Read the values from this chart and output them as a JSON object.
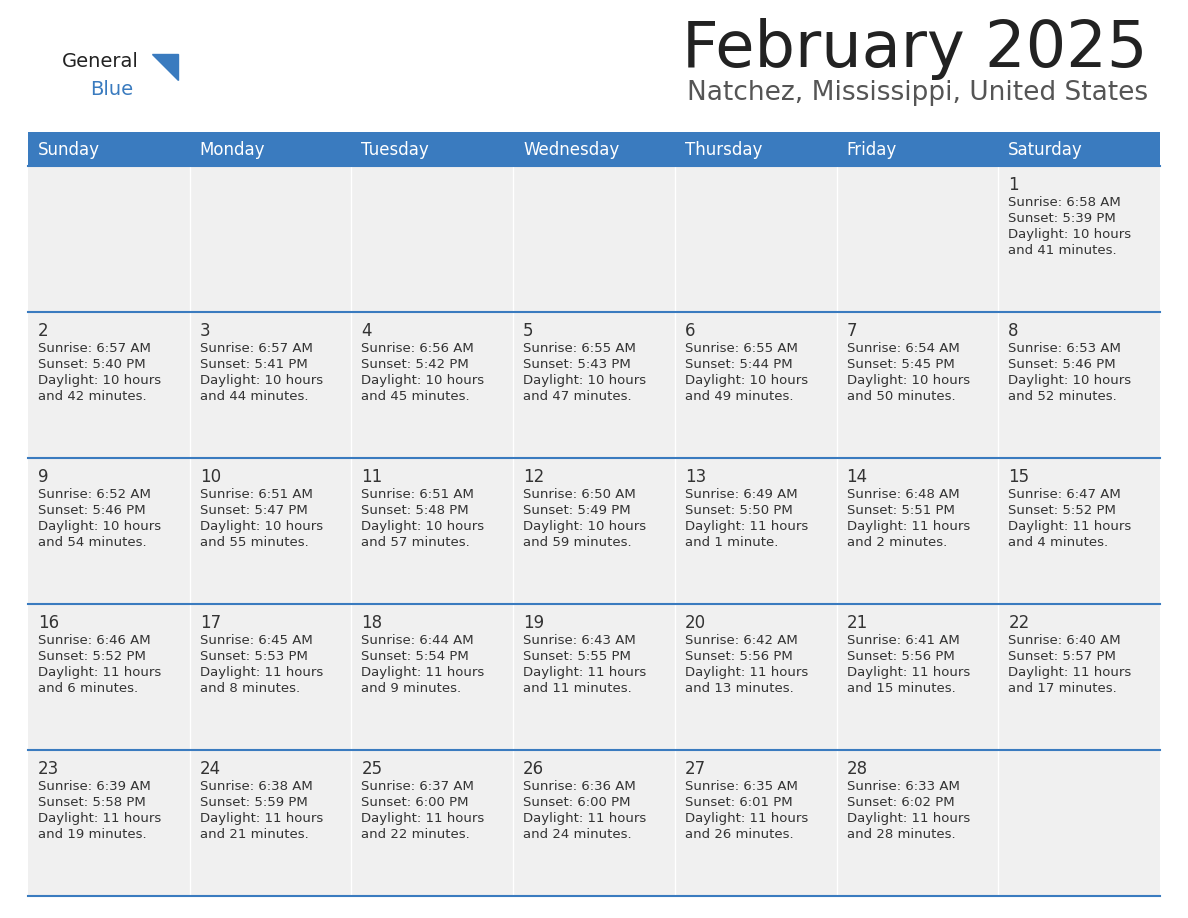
{
  "title": "February 2025",
  "subtitle": "Natchez, Mississippi, United States",
  "days_of_week": [
    "Sunday",
    "Monday",
    "Tuesday",
    "Wednesday",
    "Thursday",
    "Friday",
    "Saturday"
  ],
  "header_bg": "#3a7bbf",
  "header_text": "#ffffff",
  "cell_bg": "#f0f0f0",
  "border_color": "#3a7bbf",
  "text_color": "#333333",
  "title_color": "#222222",
  "subtitle_color": "#555555",
  "logo_black": "#222222",
  "logo_blue": "#3a7bbf",
  "calendar_data": [
    [
      null,
      null,
      null,
      null,
      null,
      null,
      {
        "day": "1",
        "sunrise": "6:58 AM",
        "sunset": "5:39 PM",
        "daylight": "10 hours",
        "daylight2": "and 41 minutes."
      }
    ],
    [
      {
        "day": "2",
        "sunrise": "6:57 AM",
        "sunset": "5:40 PM",
        "daylight": "10 hours",
        "daylight2": "and 42 minutes."
      },
      {
        "day": "3",
        "sunrise": "6:57 AM",
        "sunset": "5:41 PM",
        "daylight": "10 hours",
        "daylight2": "and 44 minutes."
      },
      {
        "day": "4",
        "sunrise": "6:56 AM",
        "sunset": "5:42 PM",
        "daylight": "10 hours",
        "daylight2": "and 45 minutes."
      },
      {
        "day": "5",
        "sunrise": "6:55 AM",
        "sunset": "5:43 PM",
        "daylight": "10 hours",
        "daylight2": "and 47 minutes."
      },
      {
        "day": "6",
        "sunrise": "6:55 AM",
        "sunset": "5:44 PM",
        "daylight": "10 hours",
        "daylight2": "and 49 minutes."
      },
      {
        "day": "7",
        "sunrise": "6:54 AM",
        "sunset": "5:45 PM",
        "daylight": "10 hours",
        "daylight2": "and 50 minutes."
      },
      {
        "day": "8",
        "sunrise": "6:53 AM",
        "sunset": "5:46 PM",
        "daylight": "10 hours",
        "daylight2": "and 52 minutes."
      }
    ],
    [
      {
        "day": "9",
        "sunrise": "6:52 AM",
        "sunset": "5:46 PM",
        "daylight": "10 hours",
        "daylight2": "and 54 minutes."
      },
      {
        "day": "10",
        "sunrise": "6:51 AM",
        "sunset": "5:47 PM",
        "daylight": "10 hours",
        "daylight2": "and 55 minutes."
      },
      {
        "day": "11",
        "sunrise": "6:51 AM",
        "sunset": "5:48 PM",
        "daylight": "10 hours",
        "daylight2": "and 57 minutes."
      },
      {
        "day": "12",
        "sunrise": "6:50 AM",
        "sunset": "5:49 PM",
        "daylight": "10 hours",
        "daylight2": "and 59 minutes."
      },
      {
        "day": "13",
        "sunrise": "6:49 AM",
        "sunset": "5:50 PM",
        "daylight": "11 hours",
        "daylight2": "and 1 minute."
      },
      {
        "day": "14",
        "sunrise": "6:48 AM",
        "sunset": "5:51 PM",
        "daylight": "11 hours",
        "daylight2": "and 2 minutes."
      },
      {
        "day": "15",
        "sunrise": "6:47 AM",
        "sunset": "5:52 PM",
        "daylight": "11 hours",
        "daylight2": "and 4 minutes."
      }
    ],
    [
      {
        "day": "16",
        "sunrise": "6:46 AM",
        "sunset": "5:52 PM",
        "daylight": "11 hours",
        "daylight2": "and 6 minutes."
      },
      {
        "day": "17",
        "sunrise": "6:45 AM",
        "sunset": "5:53 PM",
        "daylight": "11 hours",
        "daylight2": "and 8 minutes."
      },
      {
        "day": "18",
        "sunrise": "6:44 AM",
        "sunset": "5:54 PM",
        "daylight": "11 hours",
        "daylight2": "and 9 minutes."
      },
      {
        "day": "19",
        "sunrise": "6:43 AM",
        "sunset": "5:55 PM",
        "daylight": "11 hours",
        "daylight2": "and 11 minutes."
      },
      {
        "day": "20",
        "sunrise": "6:42 AM",
        "sunset": "5:56 PM",
        "daylight": "11 hours",
        "daylight2": "and 13 minutes."
      },
      {
        "day": "21",
        "sunrise": "6:41 AM",
        "sunset": "5:56 PM",
        "daylight": "11 hours",
        "daylight2": "and 15 minutes."
      },
      {
        "day": "22",
        "sunrise": "6:40 AM",
        "sunset": "5:57 PM",
        "daylight": "11 hours",
        "daylight2": "and 17 minutes."
      }
    ],
    [
      {
        "day": "23",
        "sunrise": "6:39 AM",
        "sunset": "5:58 PM",
        "daylight": "11 hours",
        "daylight2": "and 19 minutes."
      },
      {
        "day": "24",
        "sunrise": "6:38 AM",
        "sunset": "5:59 PM",
        "daylight": "11 hours",
        "daylight2": "and 21 minutes."
      },
      {
        "day": "25",
        "sunrise": "6:37 AM",
        "sunset": "6:00 PM",
        "daylight": "11 hours",
        "daylight2": "and 22 minutes."
      },
      {
        "day": "26",
        "sunrise": "6:36 AM",
        "sunset": "6:00 PM",
        "daylight": "11 hours",
        "daylight2": "and 24 minutes."
      },
      {
        "day": "27",
        "sunrise": "6:35 AM",
        "sunset": "6:01 PM",
        "daylight": "11 hours",
        "daylight2": "and 26 minutes."
      },
      {
        "day": "28",
        "sunrise": "6:33 AM",
        "sunset": "6:02 PM",
        "daylight": "11 hours",
        "daylight2": "and 28 minutes."
      },
      null
    ]
  ]
}
